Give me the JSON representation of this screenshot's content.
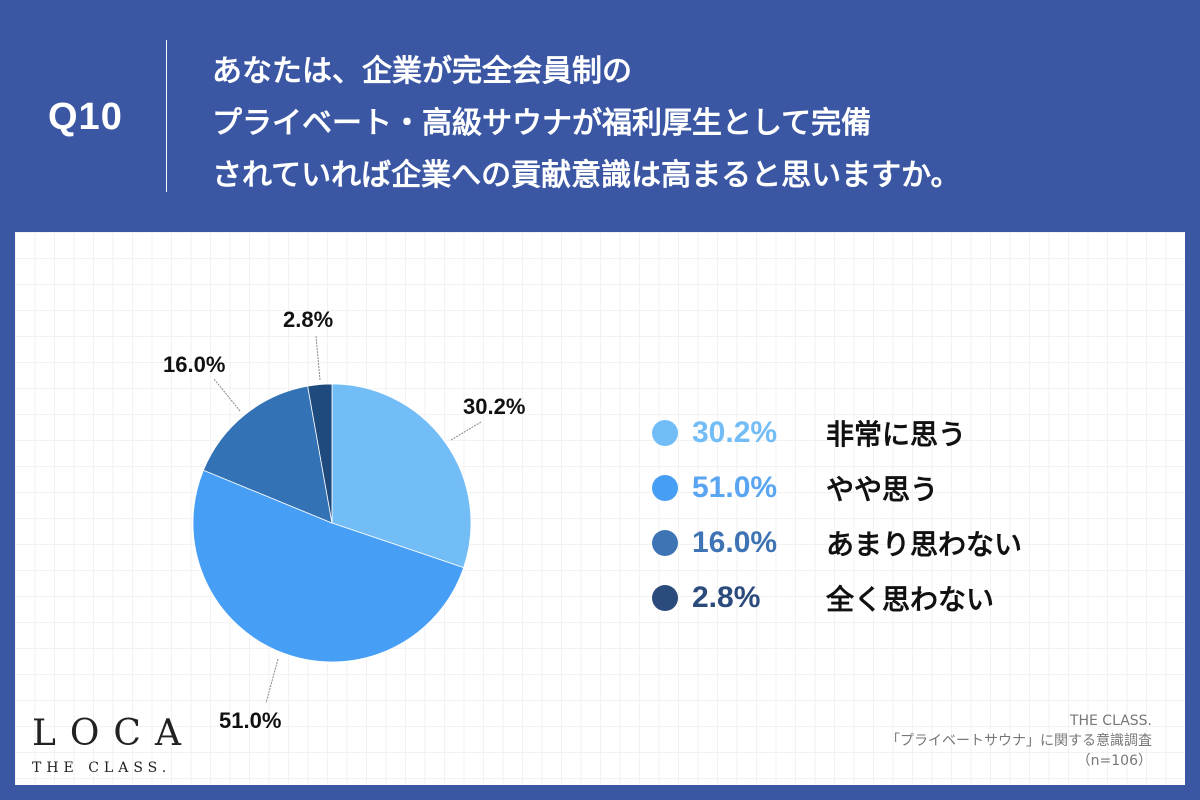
{
  "header": {
    "question_number": "Q10",
    "question_lines": [
      "あなたは、企業が完全会員制の",
      "プライベート・高級サウナが福利厚生として完備",
      "されていれば企業への貢献意識は高まると思いますか。"
    ]
  },
  "colors": {
    "background": "#3b57a4",
    "slice_1": "#73bdf7",
    "slice_2": "#479ef5",
    "slice_3": "#3372b5",
    "slice_4": "#1f4a7d"
  },
  "chart_data": {
    "type": "pie",
    "title": "あなたは、企業が完全会員制のプライベート・高級サウナが福利厚生として完備されていれば企業への貢献意識は高まると思いますか。",
    "categories": [
      "非常に思う",
      "やや思う",
      "あまり思わない",
      "全く思わない"
    ],
    "values": [
      30.2,
      51.0,
      16.0,
      2.8
    ],
    "labels": [
      "30.2%",
      "51.0%",
      "16.0%",
      "2.8%"
    ],
    "colors": [
      "#73bdf7",
      "#479ef5",
      "#3372b5",
      "#1f4a7d"
    ],
    "start_angle": "12 o'clock, clockwise",
    "legend_position": "right",
    "n": 106
  },
  "legend": [
    {
      "pct": "30.2%",
      "label": "非常に思う",
      "color": "#73bdf7",
      "text_color": "#73bdf7"
    },
    {
      "pct": "51.0%",
      "label": "やや思う",
      "color": "#479ef5",
      "text_color": "#5aa5f2"
    },
    {
      "pct": "16.0%",
      "label": "あまり思わない",
      "color": "#3f74b4",
      "text_color": "#3f74b4"
    },
    {
      "pct": "2.8%",
      "label": "全く思わない",
      "color": "#2a4b7c",
      "text_color": "#2a4b7c"
    }
  ],
  "logo": {
    "main": "LOCA",
    "sub": "THE CLASS."
  },
  "source": {
    "line1": "THE CLASS.",
    "line2": "「プライベートサウナ」に関する意識調査",
    "line3": "（n=106）"
  }
}
